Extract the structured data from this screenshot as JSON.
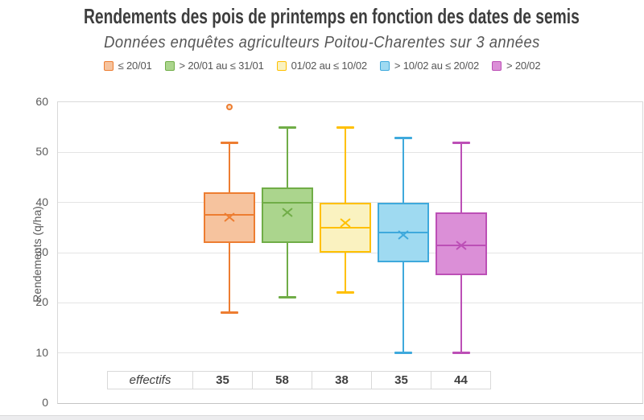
{
  "header": {
    "title": "Rendements des pois de printemps en fonction des dates de semis",
    "subtitle": "Données enquêtes agriculteurs Poitou-Charentes sur 3 années"
  },
  "legend": {
    "items": [
      {
        "label": "≤ 20/01",
        "fill": "#F6C39E",
        "border": "#ED7D31"
      },
      {
        "label": "> 20/01 au ≤ 31/01",
        "fill": "#ABD58D",
        "border": "#70AD47"
      },
      {
        "label": "01/02 au ≤ 10/02",
        "fill": "#FAF2C0",
        "border": "#FFC000"
      },
      {
        "label": "> 10/02 au ≤ 20/02",
        "fill": "#9FDAF1",
        "border": "#3FA9DC"
      },
      {
        "label": "> 20/02",
        "fill": "#DB8FD7",
        "border": "#BC4FB6"
      }
    ]
  },
  "chart_data": {
    "type": "boxplot",
    "title": "Rendements des pois de printemps en fonction des dates de semis",
    "subtitle": "Données enquêtes agriculteurs Poitou-Charentes sur 3 années",
    "ylabel": "Rendements (q/ha)",
    "xlabel": "",
    "ylim": [
      0,
      60
    ],
    "yticks": [
      0,
      10,
      20,
      30,
      40,
      50,
      60
    ],
    "grid": true,
    "legend_position": "top",
    "series": [
      {
        "name": "≤ 20/01",
        "color": "#ED7D31",
        "fill": "#F6C39E",
        "min": 18,
        "q1": 32,
        "median": 37.5,
        "q3": 42,
        "max": 52,
        "mean": 37,
        "outliers": [
          59
        ],
        "n": 35
      },
      {
        "name": "> 20/01 au ≤ 31/01",
        "color": "#70AD47",
        "fill": "#ABD58D",
        "min": 21,
        "q1": 32,
        "median": 40,
        "q3": 43,
        "max": 55,
        "mean": 38,
        "outliers": [],
        "n": 58
      },
      {
        "name": "01/02 au ≤ 10/02",
        "color": "#FFC000",
        "fill": "#FAF2C0",
        "min": 22,
        "q1": 30,
        "median": 35,
        "q3": 40,
        "max": 55,
        "mean": 36,
        "outliers": [],
        "n": 38
      },
      {
        "name": "> 10/02 au ≤ 20/02",
        "color": "#3FA9DC",
        "fill": "#9FDAF1",
        "min": 10,
        "q1": 28,
        "median": 34,
        "q3": 40,
        "max": 53,
        "mean": 33.5,
        "outliers": [],
        "n": 35
      },
      {
        "name": "> 20/02",
        "color": "#BC4FB6",
        "fill": "#DB8FD7",
        "min": 10,
        "q1": 25.5,
        "median": 31.5,
        "q3": 38,
        "max": 52,
        "mean": 31.5,
        "outliers": [],
        "n": 44
      }
    ],
    "effectifs_label": "effectifs",
    "counts": [
      35,
      58,
      38,
      35,
      44
    ]
  },
  "colors": {
    "grid": "#E4E4E4",
    "plot_border": "#D9D9D9",
    "axis_text": "#5A5A5A",
    "title_text": "#3E3E3E"
  }
}
